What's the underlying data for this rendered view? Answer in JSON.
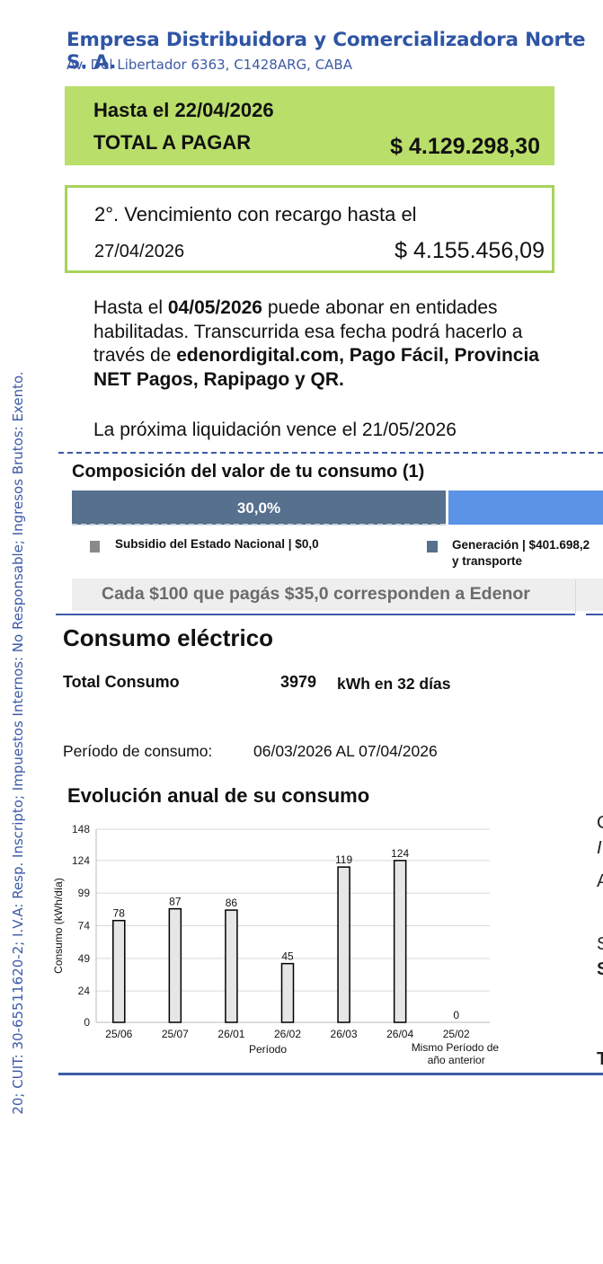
{
  "side_text": "20; CUIT: 30-65511620-2; I.V.A: Resp. Inscripto; Impuestos Internos: No Responsable; Ingresos Brutos: Exento.",
  "header": {
    "company": "Empresa Distribuidora y Comercializadora Norte S. A.",
    "address": "Av. Del Libertador 6363, C1428ARG, CABA"
  },
  "due1": {
    "until": "Hasta el 22/04/2026",
    "total_label": "TOTAL A PAGAR",
    "total_amount": "$ 4.129.298,30"
  },
  "due2": {
    "line1": "2°. Vencimiento con recargo hasta el",
    "date": "27/04/2026",
    "amount": "$ 4.155.456,09"
  },
  "payment": {
    "t1": "Hasta el ",
    "date": "04/05/2026",
    "t2": " puede abonar en entidades habilitadas. Transcurrida esa fecha podrá hacerlo a través de ",
    "channels": "edenordigital.com, Pago Fácil, Provincia NET Pagos, Rapipago y QR.",
    "next_due": "La próxima liquidación vence el 21/05/2026"
  },
  "composition": {
    "title": "Composición del valor de tu consumo (1)",
    "subsidy_pct": "30,0%",
    "legend": [
      {
        "label": "Subsidio del Estado Nacional | $0,0",
        "color": "#8a8a8a"
      },
      {
        "label": "Generación | $401.698,2",
        "label2": "y transporte",
        "color": "#56708e"
      }
    ],
    "bar_colors": {
      "subsidy": "#56708e",
      "generation": "#5b93e6"
    },
    "per100": "Cada $100 que pagás $35,0 corresponden a Edenor"
  },
  "consumption": {
    "title": "Consumo eléctrico",
    "total_label": "Total Consumo",
    "total_kwh": "3979",
    "total_unit": "kWh en 32 días",
    "period_label": "Período de consumo:",
    "period_value": "06/03/2026 AL 07/04/2026"
  },
  "evolution": {
    "title": "Evolución anual de su consumo"
  },
  "chart_data": {
    "type": "bar",
    "categories": [
      "25/06",
      "25/07",
      "26/01",
      "26/02",
      "26/03",
      "26/04",
      "25/02"
    ],
    "values": [
      78,
      87,
      86,
      45,
      119,
      124,
      0
    ],
    "ylabel": "Consumo (kWh/día)",
    "xlabel": "Período",
    "secondary_xlabel": [
      "Mismo Período del",
      "año anterior"
    ],
    "yticks": [
      0,
      24,
      49,
      74,
      99,
      124,
      148
    ],
    "ylim": [
      0,
      148
    ],
    "grid": true,
    "bar_color": "#e6e6e6",
    "bar_edge": "#000000"
  },
  "right_fragments": [
    "C",
    "I",
    "A",
    "S",
    "S",
    "T"
  ]
}
